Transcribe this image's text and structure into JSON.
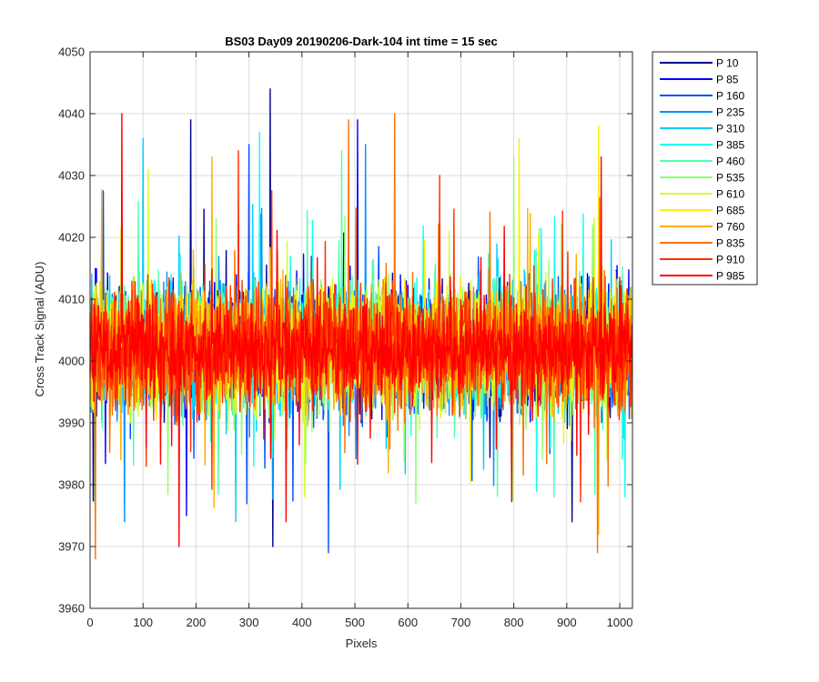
{
  "chart_data": {
    "type": "line",
    "title": "BS03 Day09 20190206-Dark-104 int time = 15 sec",
    "xlabel": "Pixels",
    "ylabel": "Cross Track Signal (ADU)",
    "xlim": [
      0,
      1024
    ],
    "ylim": [
      3960,
      4050
    ],
    "xticks": [
      0,
      100,
      200,
      300,
      400,
      500,
      600,
      700,
      800,
      900,
      1000
    ],
    "yticks": [
      3960,
      3970,
      3980,
      3990,
      4000,
      4010,
      4020,
      4030,
      4040,
      4050
    ],
    "grid": true,
    "legend_position": "outside-right",
    "series": [
      {
        "name": "P 10",
        "color": "#00008f",
        "mean": 4002,
        "spread": 14,
        "peaks": [
          [
            190,
            4039
          ],
          [
            340,
            4044
          ],
          [
            345,
            3970
          ],
          [
            910,
            3974
          ]
        ]
      },
      {
        "name": "P 85",
        "color": "#0000ff",
        "mean": 4002,
        "spread": 14,
        "peaks": [
          [
            182,
            3975
          ],
          [
            505,
            4039
          ]
        ]
      },
      {
        "name": "P 160",
        "color": "#0050ff",
        "mean": 4002,
        "spread": 14,
        "peaks": [
          [
            450,
            3969
          ],
          [
            300,
            4035
          ]
        ]
      },
      {
        "name": "P 235",
        "color": "#0090ff",
        "mean": 4002,
        "spread": 14,
        "peaks": [
          [
            65,
            3974
          ],
          [
            520,
            4035
          ]
        ]
      },
      {
        "name": "P 310",
        "color": "#00cfff",
        "mean": 4002,
        "spread": 14,
        "peaks": [
          [
            100,
            4036
          ],
          [
            275,
            3974
          ]
        ]
      },
      {
        "name": "P 385",
        "color": "#10ffef",
        "mean": 4002,
        "spread": 14,
        "peaks": [
          [
            320,
            4037
          ],
          [
            1010,
            3978
          ]
        ]
      },
      {
        "name": "P 460",
        "color": "#50ffaf",
        "mean": 4002,
        "spread": 14,
        "peaks": [
          [
            475,
            4034
          ]
        ]
      },
      {
        "name": "P 535",
        "color": "#8fff70",
        "mean": 4002,
        "spread": 14,
        "peaks": [
          [
            615,
            3977
          ],
          [
            800,
            4033
          ]
        ]
      },
      {
        "name": "P 610",
        "color": "#cfff30",
        "mean": 4002,
        "spread": 14,
        "peaks": [
          [
            110,
            4031
          ],
          [
            405,
            3978
          ]
        ]
      },
      {
        "name": "P 685",
        "color": "#ffef00",
        "mean": 4002,
        "spread": 14,
        "peaks": [
          [
            810,
            4036
          ],
          [
            960,
            4038
          ]
        ]
      },
      {
        "name": "P 760",
        "color": "#ffaf00",
        "mean": 4002,
        "spread": 14,
        "peaks": [
          [
            960,
            3972
          ],
          [
            230,
            4033
          ]
        ]
      },
      {
        "name": "P 835",
        "color": "#ff7000",
        "mean": 4002,
        "spread": 14,
        "peaks": [
          [
            10,
            3968
          ],
          [
            488,
            4039
          ],
          [
            575,
            4040
          ],
          [
            958,
            3969
          ]
        ]
      },
      {
        "name": "P 910",
        "color": "#ff3000",
        "mean": 4002,
        "spread": 14,
        "peaks": [
          [
            280,
            4034
          ],
          [
            660,
            4030
          ]
        ]
      },
      {
        "name": "P 985",
        "color": "#ff0000",
        "mean": 4002,
        "spread": 10,
        "peaks": [
          [
            60,
            4040
          ],
          [
            168,
            3970
          ],
          [
            370,
            3974
          ],
          [
            965,
            4033
          ]
        ]
      }
    ]
  }
}
